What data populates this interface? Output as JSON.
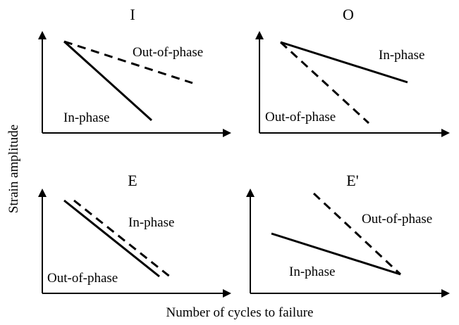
{
  "xlabel": "Number of cycles to failure",
  "ylabel": "Strain amplitude",
  "colors": {
    "lines": "#000000",
    "axes": "#000000",
    "background": "#ffffff"
  },
  "chart_data": [
    {
      "type": "line",
      "title": "I",
      "series": [
        {
          "name": "In-phase",
          "style": "solid",
          "x": [
            0.0,
            0.85
          ],
          "y": [
            0.85,
            0.0
          ]
        },
        {
          "name": "Out-of-phase",
          "style": "dashed",
          "x": [
            0.0,
            1.1
          ],
          "y": [
            0.85,
            0.5
          ]
        }
      ]
    },
    {
      "type": "line",
      "title": "O",
      "series": [
        {
          "name": "In-phase",
          "style": "solid",
          "x": [
            0.0,
            1.1
          ],
          "y": [
            0.9,
            0.55
          ]
        },
        {
          "name": "Out-of-phase",
          "style": "dashed",
          "x": [
            0.0,
            0.75
          ],
          "y": [
            0.9,
            0.0
          ]
        }
      ]
    },
    {
      "type": "line",
      "title": "E",
      "series": [
        {
          "name": "In-phase",
          "style": "dashed",
          "x": [
            0.25,
            1.1
          ],
          "y": [
            1.0,
            0.05
          ]
        },
        {
          "name": "Out-of-phase",
          "style": "solid",
          "x": [
            0.18,
            1.05
          ],
          "y": [
            1.0,
            0.1
          ]
        }
      ]
    },
    {
      "type": "line",
      "title": "E'",
      "series": [
        {
          "name": "In-phase",
          "style": "solid",
          "x": [
            0.15,
            1.2
          ],
          "y": [
            0.6,
            0.15
          ]
        },
        {
          "name": "Out-of-phase",
          "style": "dashed",
          "x": [
            0.55,
            1.2
          ],
          "y": [
            1.05,
            0.15
          ]
        }
      ]
    }
  ]
}
